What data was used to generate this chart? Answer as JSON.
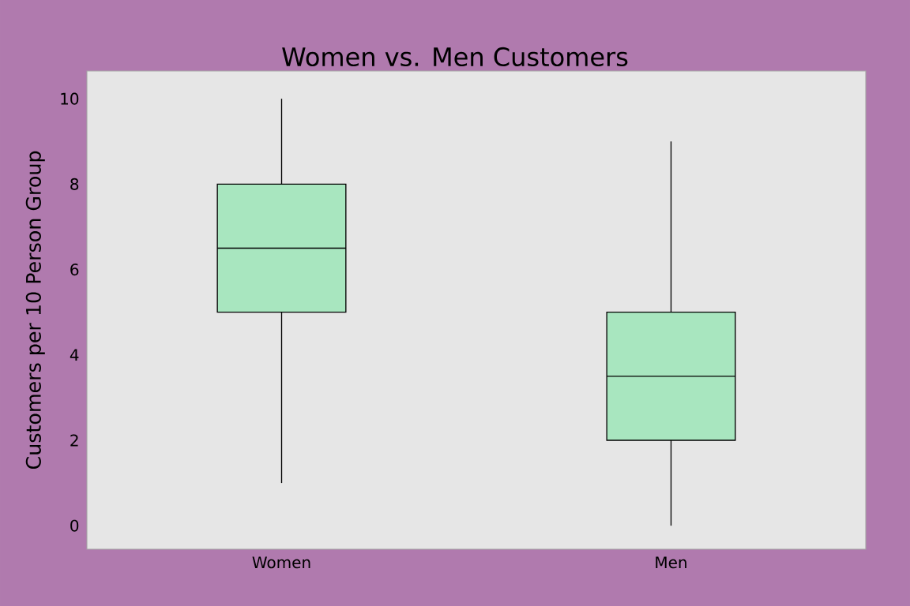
{
  "chart_data": {
    "type": "box",
    "title": "Women vs. Men Customers",
    "ylabel": "Customers per 10 Person Group",
    "categories": [
      "Women",
      "Men"
    ],
    "boxes": [
      {
        "low": 1,
        "q1": 5,
        "median": 6.5,
        "q3": 8,
        "high": 10
      },
      {
        "low": 0,
        "q1": 2,
        "median": 3.5,
        "q3": 5,
        "high": 9
      }
    ],
    "color": "#a8e6bf",
    "ylim": [
      -0.55,
      10.65
    ],
    "yticks": [
      0,
      2,
      4,
      6,
      8,
      10
    ]
  }
}
